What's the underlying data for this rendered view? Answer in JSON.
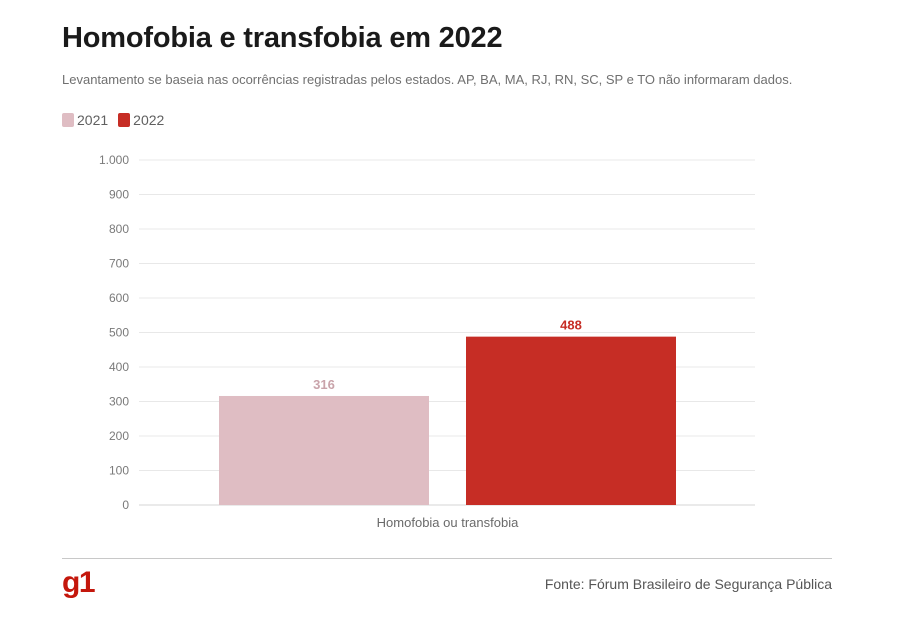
{
  "title": "Homofobia e transfobia em 2022",
  "subtitle": "Levantamento se baseia nas ocorrências registradas pelos estados. AP, BA, MA, RJ, RN, SC, SP e TO não informaram dados.",
  "source": "Fonte: Fórum Brasileiro de Segurança Pública",
  "logo": "g1",
  "chart_data": {
    "type": "bar",
    "categories": [
      "Homofobia ou transfobia"
    ],
    "series": [
      {
        "name": "2021",
        "values": [
          316
        ],
        "color": "#dfbdc3",
        "label_color": "#c9a3aa",
        "value_label": "316"
      },
      {
        "name": "2022",
        "values": [
          488
        ],
        "color": "#c62d25",
        "label_color": "#c62d25",
        "value_label": "488"
      }
    ],
    "ylim": [
      0,
      1000
    ],
    "yticks": [
      {
        "value": 0,
        "label": "0"
      },
      {
        "value": 100,
        "label": "100"
      },
      {
        "value": 200,
        "label": "200"
      },
      {
        "value": 300,
        "label": "300"
      },
      {
        "value": 400,
        "label": "400"
      },
      {
        "value": 500,
        "label": "500"
      },
      {
        "value": 600,
        "label": "600"
      },
      {
        "value": 700,
        "label": "700"
      },
      {
        "value": 800,
        "label": "800"
      },
      {
        "value": 900,
        "label": "900"
      },
      {
        "value": 1000,
        "label": "1.000"
      }
    ],
    "grid": true,
    "legend_position": "top-left"
  }
}
